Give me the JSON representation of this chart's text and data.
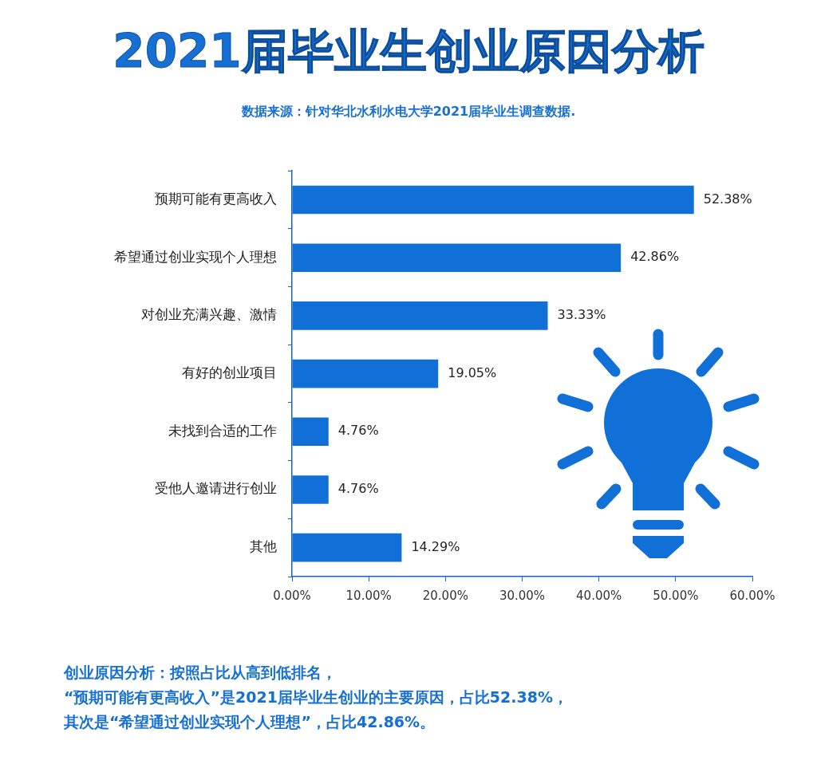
{
  "chart_data": {
    "type": "bar",
    "orientation": "horizontal",
    "title": "2021届毕业生创业原因分析",
    "subtitle": "数据来源：针对华北水利水电大学2021届毕业生调查数据.",
    "categories": [
      "预期可能有更高收入",
      "希望通过创业实现个人理想",
      "对创业充满兴趣、激情",
      "有好的创业项目",
      "未找到合适的工作",
      "受他人邀请进行创业",
      "其他"
    ],
    "values": [
      52.38,
      42.86,
      33.33,
      19.05,
      4.76,
      4.76,
      14.29
    ],
    "value_labels": [
      "52.38%",
      "42.86%",
      "33.33%",
      "19.05%",
      "4.76%",
      "4.76%",
      "14.29%"
    ],
    "color": "#1170d8",
    "xlim": [
      0,
      60
    ],
    "xticks": [
      {
        "value": 0,
        "label": "0.00%"
      },
      {
        "value": 10,
        "label": "10.00%"
      },
      {
        "value": 20,
        "label": "20.00%"
      },
      {
        "value": 30,
        "label": "30.00%"
      },
      {
        "value": 40,
        "label": "40.00%"
      },
      {
        "value": 50,
        "label": "50.00%"
      },
      {
        "value": 60,
        "label": "60.00%"
      }
    ],
    "grid": false,
    "annotations": [
      "创业原因分析：按照占比从高到低排名，",
      "“预期可能有更高收入”是2021届毕业生创业的主要原因，占比52.38%，",
      "其次是“希望通过创业实现个人理想”，占比42.86%。"
    ]
  }
}
